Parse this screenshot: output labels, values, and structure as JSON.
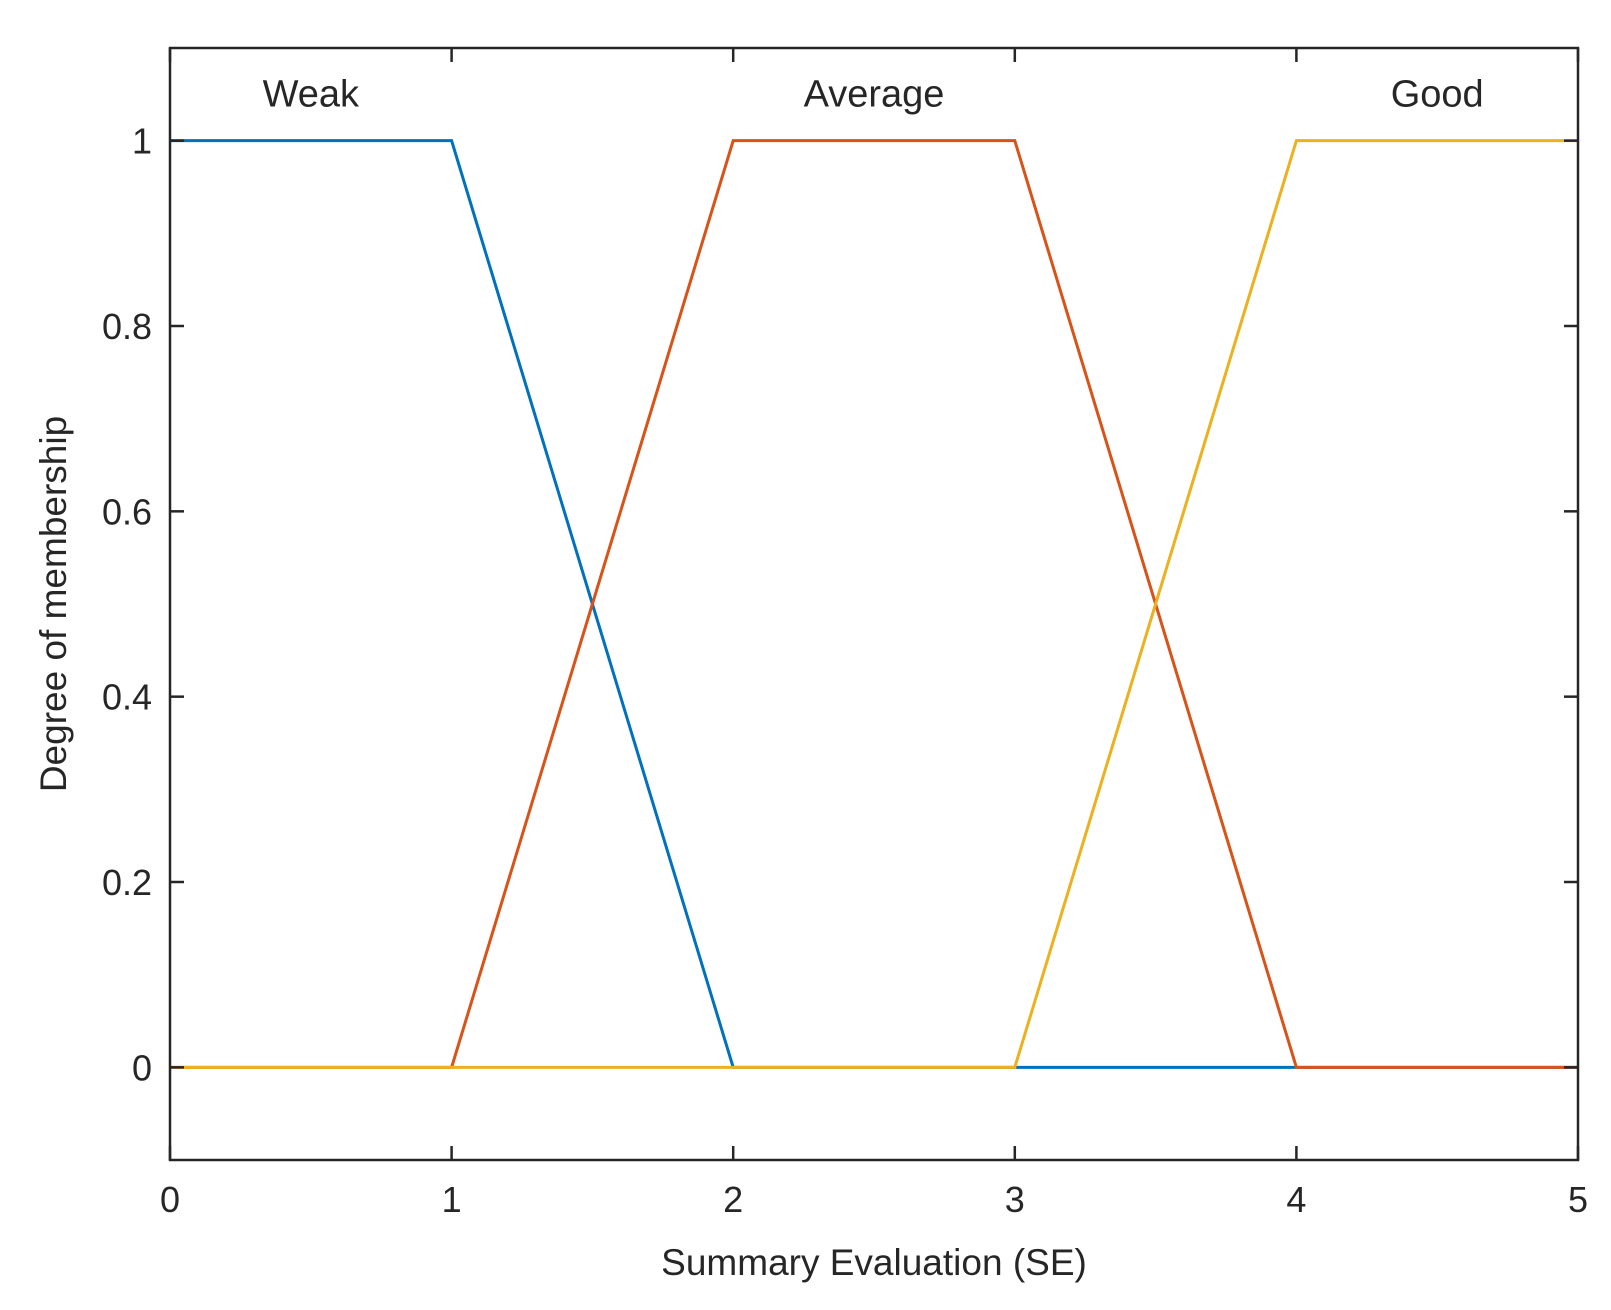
{
  "chart_data": {
    "type": "line",
    "title": "",
    "xlabel": "Summary Evaluation (SE)",
    "ylabel": "Degree of membership",
    "xlim": [
      0,
      5
    ],
    "ylim": [
      -0.1,
      1.1
    ],
    "x_ticks": [
      "0",
      "1",
      "2",
      "3",
      "4",
      "5"
    ],
    "y_ticks": [
      "0",
      "0.2",
      "0.4",
      "0.6",
      "0.8",
      "1"
    ],
    "series": [
      {
        "name": "Weak",
        "color": "#0072BD",
        "x": [
          0,
          1,
          2,
          5
        ],
        "y": [
          1,
          1,
          0,
          0
        ]
      },
      {
        "name": "Average",
        "color": "#D95319",
        "x": [
          0,
          1,
          2,
          3,
          4,
          5
        ],
        "y": [
          0,
          0,
          1,
          1,
          0,
          0
        ]
      },
      {
        "name": "Good",
        "color": "#EDB120",
        "x": [
          0,
          3,
          4,
          5
        ],
        "y": [
          0,
          0,
          1,
          1
        ]
      }
    ],
    "annotations": [
      {
        "text": "Weak",
        "x": 0.5,
        "y": 1.05
      },
      {
        "text": "Average",
        "x": 2.5,
        "y": 1.05
      },
      {
        "text": "Good",
        "x": 4.5,
        "y": 1.05
      }
    ]
  }
}
